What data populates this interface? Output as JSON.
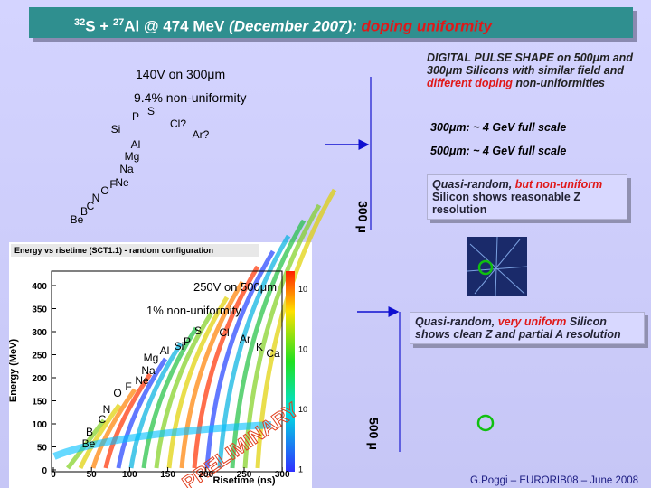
{
  "title": {
    "mass_a": "32",
    "sym_a": "S",
    "plus": "+",
    "mass_b": "27",
    "rest": "Al @ 474 MeV",
    "date": "(December 2007):",
    "highlight": "doping uniformity"
  },
  "upper_plot": {
    "bias": "140V on 300μm",
    "nonuniformity": "9.4% non-uniformity",
    "elements": [
      "P",
      "S",
      "Si",
      "Cl?",
      "Ar?",
      "Al",
      "Mg",
      "Na",
      "Ne",
      "F",
      "O",
      "N",
      "C",
      "B",
      "Be"
    ],
    "thickness": "300 μ"
  },
  "lower_plot": {
    "header": "Energy vs risetime (SCT1.1) - random configuration",
    "y_label": "Energy (MeV)",
    "x_label": "Risetime (ns)",
    "y_ticks": [
      "400",
      "350",
      "300",
      "250",
      "200",
      "150",
      "100",
      "50",
      "0"
    ],
    "x_ticks": [
      "0",
      "50",
      "100",
      "150",
      "200",
      "250",
      "300"
    ],
    "color_ticks": [
      "10",
      "10",
      "10",
      "1"
    ],
    "bias": "250V on 500μm",
    "nonuniformity": "1% non-uniformity",
    "elements": [
      "S",
      "Cl",
      "Ar",
      "K",
      "Ca",
      "P",
      "Si",
      "Al",
      "Mg",
      "Na",
      "Ne",
      "F",
      "O",
      "N",
      "C",
      "B",
      "Be"
    ],
    "stamp": "PRELIMINARY",
    "thickness": "500 μ"
  },
  "notes": {
    "intro_a": "DIGITAL PULSE SHAPE on 500μm and 300μm Silicons with similar field and",
    "intro_red": "different doping",
    "intro_b": "non-uniformities",
    "scale_300": "300μm: ~ 4 GeV full scale",
    "scale_500": "500μm: ~ 4 GeV full scale"
  },
  "box_300": {
    "lead": "Quasi-random,",
    "red": "but non-uniform",
    "a": "Silicon",
    "underlined": "shows",
    "b": "reasonable Z resolution"
  },
  "box_500": {
    "lead": "Quasi-random,",
    "red": "very uniform",
    "b": "Silicon shows clean Z and partial A resolution"
  },
  "footer": "G.Poggi – EURORIB08 – June 2008"
}
